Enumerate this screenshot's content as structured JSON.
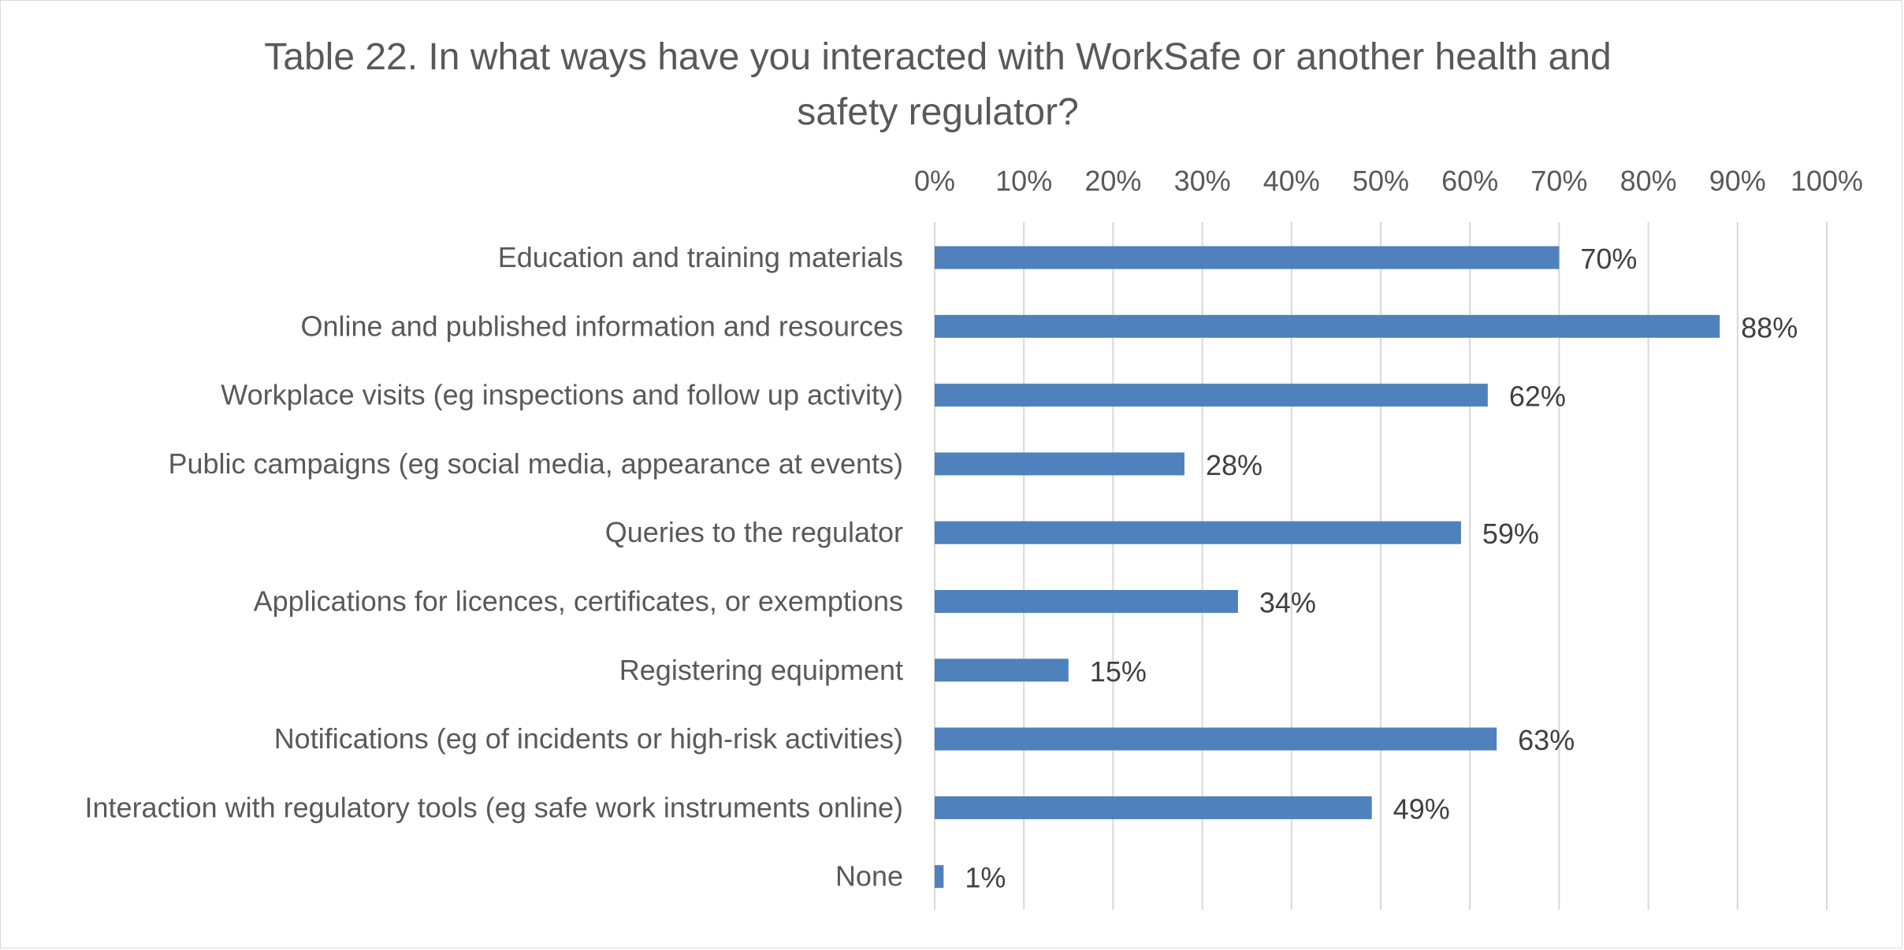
{
  "chart_data": {
    "type": "bar",
    "orientation": "horizontal",
    "title_lines": [
      "Table 22. In what ways have you interacted with WorkSafe or another health and",
      "safety regulator?"
    ],
    "categories": [
      "Education and training materials",
      "Online and published information and resources",
      "Workplace visits (eg inspections and follow up activity)",
      "Public campaigns (eg social media, appearance at events)",
      "Queries to the regulator",
      "Applications for licences, certificates, or exemptions",
      "Registering equipment",
      "Notifications (eg of incidents or high-risk activities)",
      "Interaction with regulatory tools (eg safe work instruments online)",
      "None"
    ],
    "values": [
      70,
      88,
      62,
      28,
      59,
      34,
      15,
      63,
      49,
      1
    ],
    "value_labels": [
      "70%",
      "88%",
      "62%",
      "28%",
      "59%",
      "34%",
      "15%",
      "63%",
      "49%",
      "1%"
    ],
    "x_ticks": [
      "0%",
      "10%",
      "20%",
      "30%",
      "40%",
      "50%",
      "60%",
      "70%",
      "80%",
      "90%",
      "100%"
    ],
    "xlim": [
      0,
      100
    ],
    "x_axis_position": "top",
    "grid": true,
    "bar_color": "#4f81bd",
    "gridline_color": "#d9d9d9",
    "text_color": "#595959"
  }
}
